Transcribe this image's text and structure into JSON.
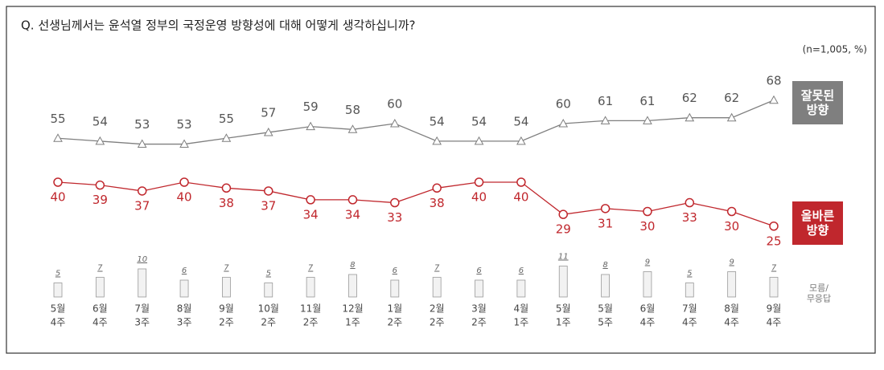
{
  "chart_data": {
    "type": "line",
    "title": "Q. 선생님께서는 윤석열 정부의 국정운영 방향성에 대해 어떻게 생각하십니까?",
    "subtitle": "(n=1,005, %)",
    "categories": [
      [
        "5월",
        "4주"
      ],
      [
        "6월",
        "4주"
      ],
      [
        "7월",
        "3주"
      ],
      [
        "8월",
        "3주"
      ],
      [
        "9월",
        "2주"
      ],
      [
        "10월",
        "2주"
      ],
      [
        "11월",
        "2주"
      ],
      [
        "12월",
        "1주"
      ],
      [
        "1월",
        "2주"
      ],
      [
        "2월",
        "2주"
      ],
      [
        "3월",
        "2주"
      ],
      [
        "4월",
        "1주"
      ],
      [
        "5월",
        "1주"
      ],
      [
        "5월",
        "5주"
      ],
      [
        "6월",
        "4주"
      ],
      [
        "7월",
        "4주"
      ],
      [
        "8월",
        "4주"
      ],
      [
        "9월",
        "4주"
      ]
    ],
    "ylim": [
      0,
      100
    ],
    "y2lim": [
      0,
      100
    ],
    "series": [
      {
        "name": "잘못된 방향",
        "color": "#7f7f7f",
        "marker": "triangle",
        "values": [
          55,
          54,
          53,
          53,
          55,
          57,
          59,
          58,
          60,
          54,
          54,
          54,
          60,
          61,
          61,
          62,
          62,
          68
        ]
      },
      {
        "name": "올바른 방향",
        "color": "#c0272d",
        "marker": "circle",
        "values": [
          40,
          39,
          37,
          40,
          38,
          37,
          34,
          34,
          33,
          38,
          40,
          40,
          29,
          31,
          30,
          33,
          30,
          25
        ]
      },
      {
        "name": "모름/무응답",
        "color": "#f2f2f2",
        "type": "bar",
        "axis": "y2",
        "values": [
          5,
          7,
          10,
          6,
          7,
          5,
          7,
          8,
          6,
          7,
          6,
          6,
          11,
          8,
          9,
          5,
          9,
          7
        ]
      }
    ]
  }
}
